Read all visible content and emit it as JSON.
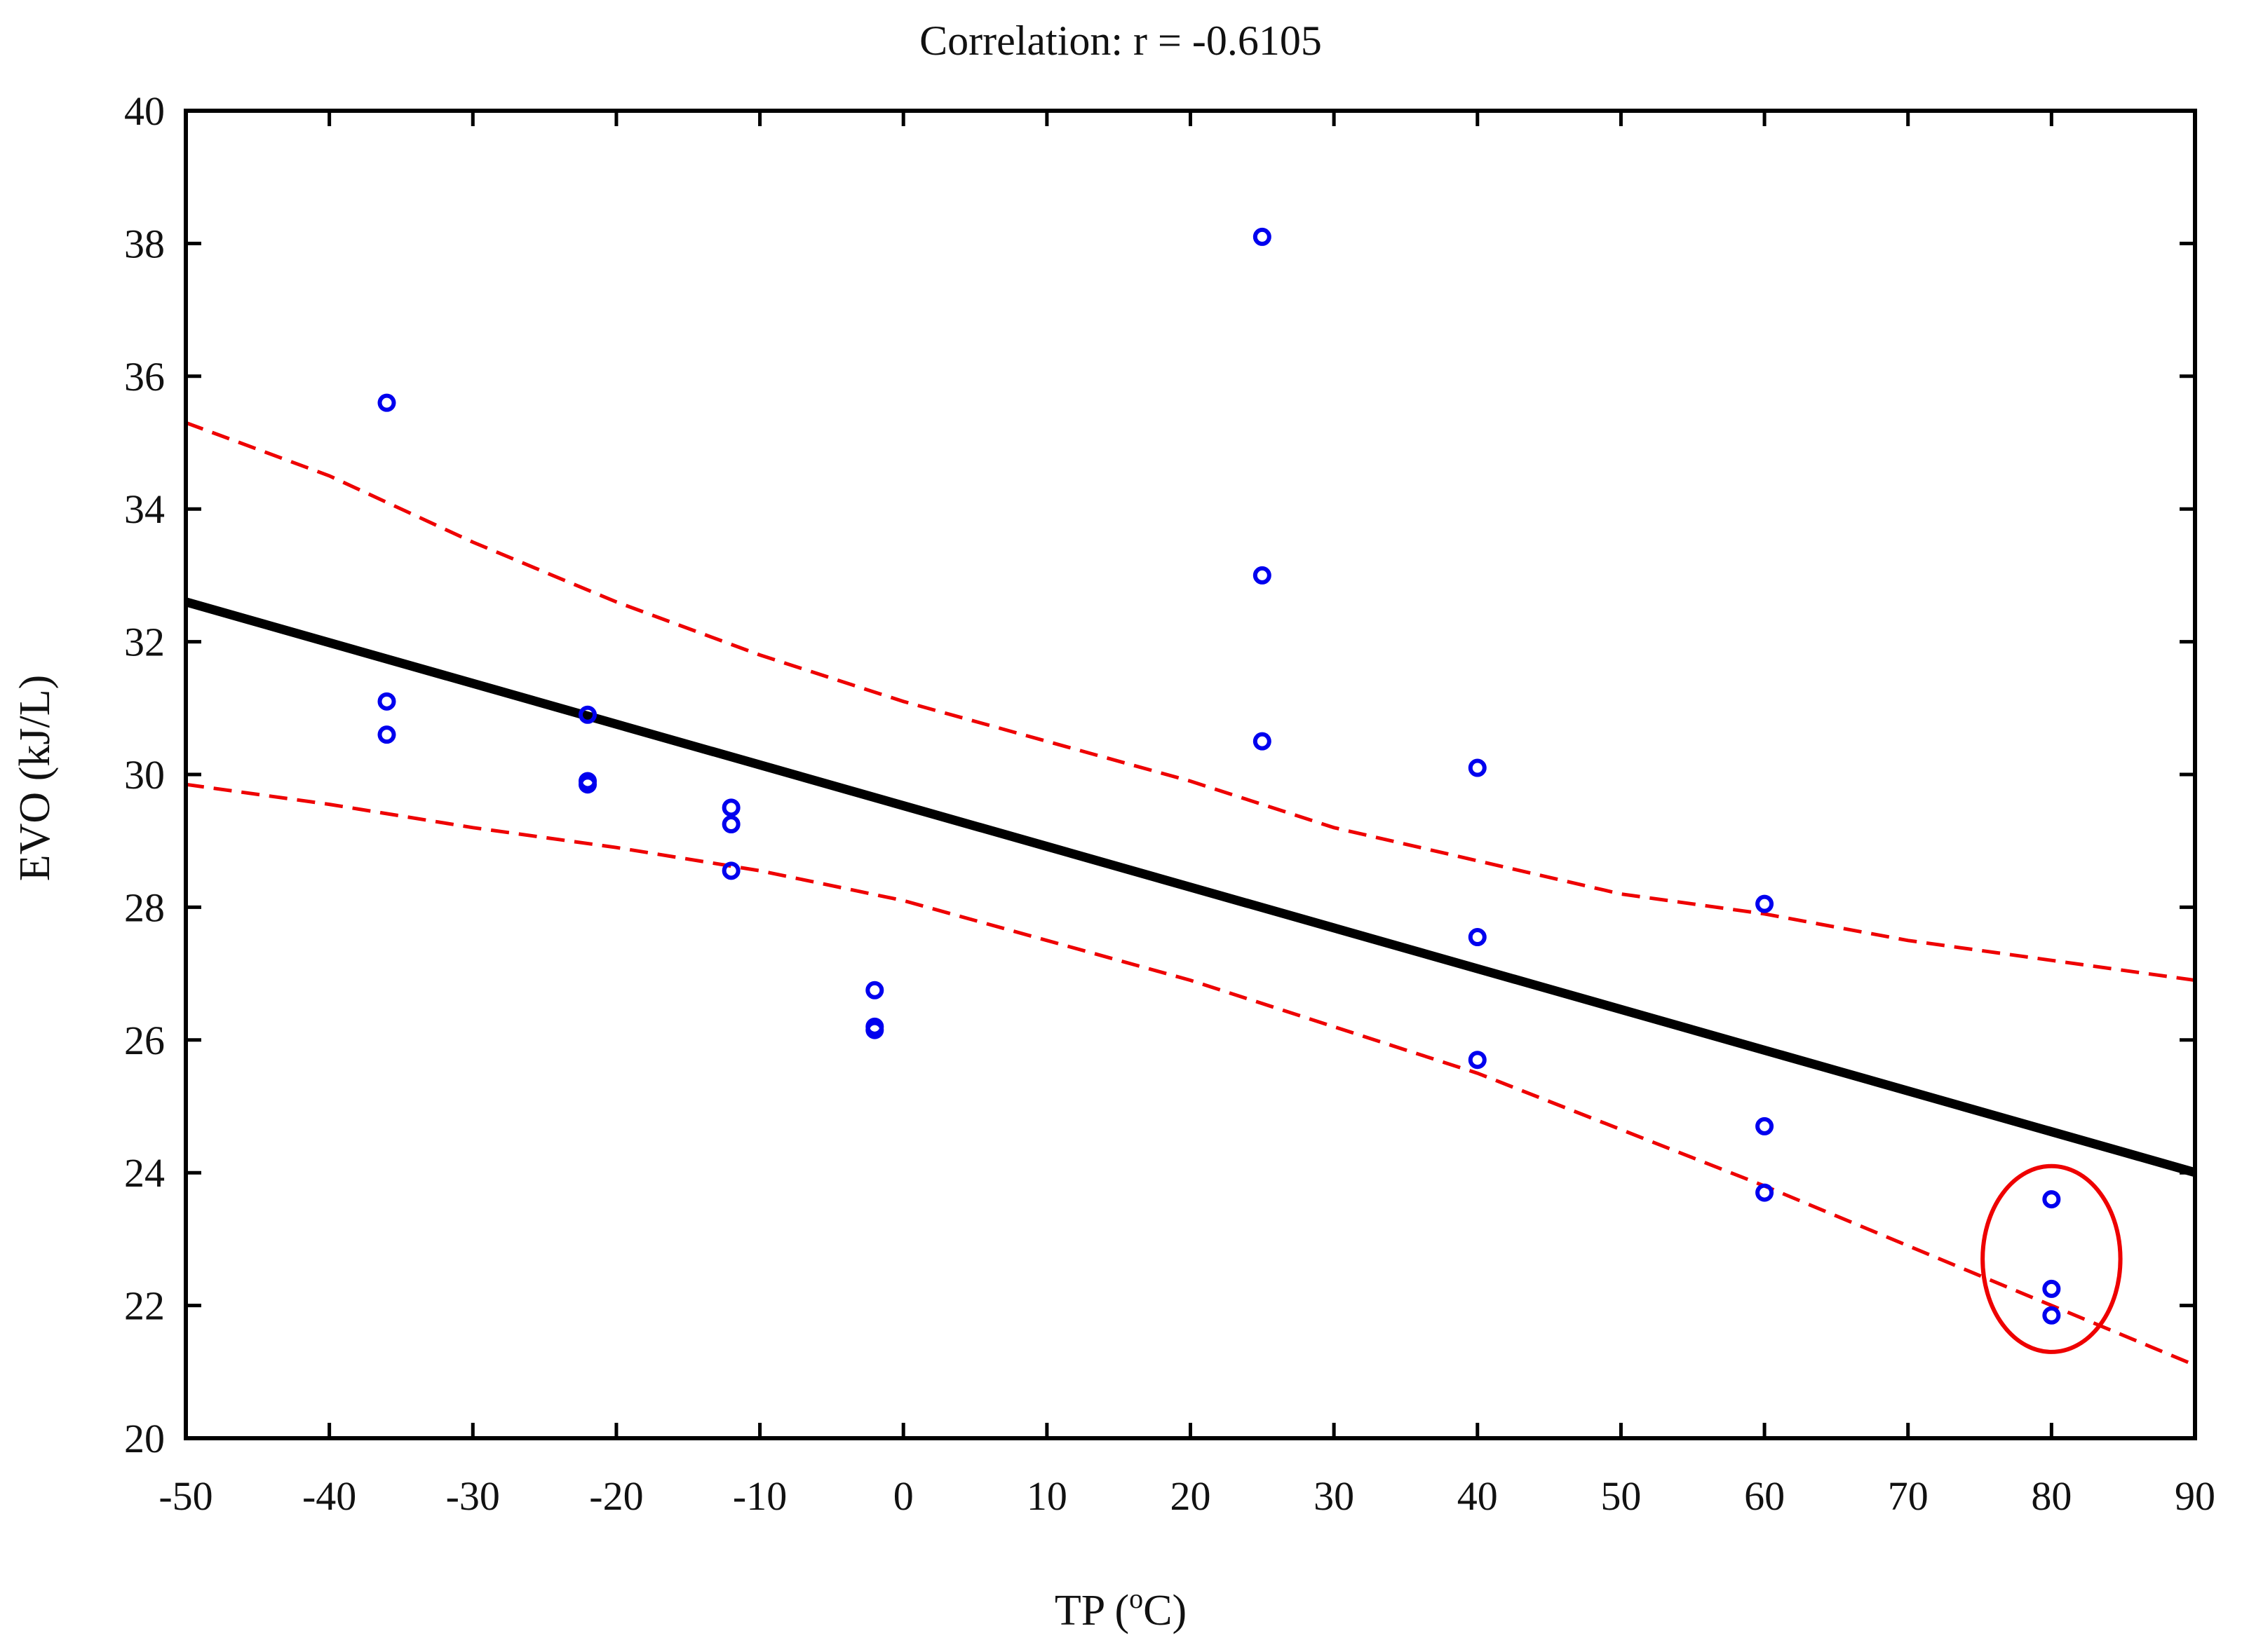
{
  "chart_data": {
    "type": "scatter",
    "title": "Correlation: r = -0.6105",
    "xlabel": "TP (",
    "xlabel_sup": "o",
    "xlabel_suffix": "C)",
    "ylabel": "EVO (kJ/L)",
    "xlim": [
      -50,
      90
    ],
    "ylim": [
      20,
      40
    ],
    "xticks": [
      -50,
      -40,
      -30,
      -20,
      -10,
      0,
      10,
      20,
      30,
      40,
      50,
      60,
      70,
      80,
      90
    ],
    "yticks": [
      20,
      22,
      24,
      26,
      28,
      30,
      32,
      34,
      36,
      38,
      40
    ],
    "x_tick_labels": [
      "-50",
      "-40",
      "-30",
      "-20",
      "-10",
      "0",
      "10",
      "20",
      "30",
      "40",
      "50",
      "60",
      "70",
      "80",
      "90"
    ],
    "y_tick_labels": [
      "20",
      "22",
      "24",
      "26",
      "28",
      "30",
      "32",
      "34",
      "36",
      "38",
      "40"
    ],
    "points": [
      {
        "x": -36,
        "y": 35.6
      },
      {
        "x": -36,
        "y": 31.1
      },
      {
        "x": -36,
        "y": 30.6
      },
      {
        "x": -22,
        "y": 30.9
      },
      {
        "x": -22,
        "y": 29.9
      },
      {
        "x": -22,
        "y": 29.85
      },
      {
        "x": -12,
        "y": 29.5
      },
      {
        "x": -12,
        "y": 29.25
      },
      {
        "x": -12,
        "y": 28.55
      },
      {
        "x": -2,
        "y": 26.75
      },
      {
        "x": -2,
        "y": 26.2
      },
      {
        "x": -2,
        "y": 26.15
      },
      {
        "x": 25,
        "y": 38.1
      },
      {
        "x": 25,
        "y": 33.0
      },
      {
        "x": 25,
        "y": 30.5
      },
      {
        "x": 40,
        "y": 30.1
      },
      {
        "x": 40,
        "y": 27.55
      },
      {
        "x": 40,
        "y": 25.7
      },
      {
        "x": 60,
        "y": 28.05
      },
      {
        "x": 60,
        "y": 24.7
      },
      {
        "x": 60,
        "y": 23.7
      },
      {
        "x": 80,
        "y": 23.6
      },
      {
        "x": 80,
        "y": 22.25
      },
      {
        "x": 80,
        "y": 21.85
      }
    ],
    "regression": {
      "intercept": 29.53,
      "slope": -0.0614,
      "x_range": [
        -50,
        90
      ]
    },
    "confidence_upper": [
      {
        "x": -50,
        "y": 35.3
      },
      {
        "x": -40,
        "y": 34.5
      },
      {
        "x": -30,
        "y": 33.5
      },
      {
        "x": -20,
        "y": 32.6
      },
      {
        "x": -10,
        "y": 31.8
      },
      {
        "x": 0,
        "y": 31.1
      },
      {
        "x": 10,
        "y": 30.5
      },
      {
        "x": 20,
        "y": 29.9
      },
      {
        "x": 30,
        "y": 29.2
      },
      {
        "x": 40,
        "y": 28.7
      },
      {
        "x": 50,
        "y": 28.2
      },
      {
        "x": 60,
        "y": 27.9
      },
      {
        "x": 70,
        "y": 27.5
      },
      {
        "x": 80,
        "y": 27.2
      },
      {
        "x": 90,
        "y": 26.9
      }
    ],
    "confidence_lower": [
      {
        "x": -50,
        "y": 29.85
      },
      {
        "x": -40,
        "y": 29.55
      },
      {
        "x": -30,
        "y": 29.2
      },
      {
        "x": -20,
        "y": 28.9
      },
      {
        "x": -10,
        "y": 28.55
      },
      {
        "x": 0,
        "y": 28.1
      },
      {
        "x": 10,
        "y": 27.5
      },
      {
        "x": 20,
        "y": 26.9
      },
      {
        "x": 30,
        "y": 26.2
      },
      {
        "x": 40,
        "y": 25.5
      },
      {
        "x": 50,
        "y": 24.65
      },
      {
        "x": 60,
        "y": 23.8
      },
      {
        "x": 70,
        "y": 22.9
      },
      {
        "x": 80,
        "y": 22.0
      },
      {
        "x": 90,
        "y": 21.1
      }
    ],
    "highlight": {
      "x": 80,
      "y": 22.7,
      "rx_units": 4.8,
      "ry_units": 1.4
    },
    "colors": {
      "points": "#0000ee",
      "regression": "#000000",
      "confidence": "#ee0000",
      "highlight": "#ee0000"
    }
  }
}
